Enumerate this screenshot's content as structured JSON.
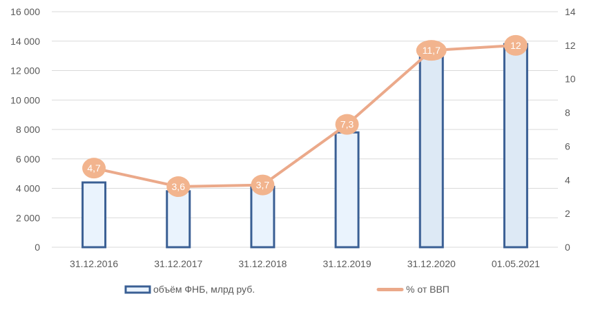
{
  "chart_data": {
    "type": "bar",
    "categories": [
      "31.12.2016",
      "31.12.2017",
      "31.12.2018",
      "31.12.2019",
      "31.12.2020",
      "01.05.2021"
    ],
    "series": [
      {
        "name": "объём ФНБ, млрд руб.",
        "type": "bar",
        "axis": "left",
        "values": [
          4400,
          3800,
          4100,
          7800,
          13200,
          13800
        ]
      },
      {
        "name": "% от ВВП",
        "type": "line",
        "axis": "right",
        "values": [
          4.7,
          3.6,
          3.7,
          7.3,
          11.7,
          12
        ],
        "labels": [
          "4,7",
          "3,6",
          "3,7",
          "7,3",
          "11,7",
          "12"
        ]
      }
    ],
    "y_left": {
      "min": 0,
      "max": 16000,
      "ticks": [
        0,
        2000,
        4000,
        6000,
        8000,
        10000,
        12000,
        14000,
        16000
      ],
      "tick_labels": [
        "0",
        "2 000",
        "4 000",
        "6 000",
        "8 000",
        "10 000",
        "12 000",
        "14 000",
        "16 000"
      ]
    },
    "y_right": {
      "min": 0,
      "max": 14,
      "ticks": [
        0,
        2,
        4,
        6,
        8,
        10,
        12,
        14
      ],
      "tick_labels": [
        "0",
        "2",
        "4",
        "6",
        "8",
        "10",
        "12",
        "14"
      ]
    },
    "title": "",
    "xlabel": "",
    "ylabel": "",
    "grid": true,
    "legend_position": "bottom",
    "colors": {
      "bar_border": "#3a5f94",
      "bar_fill_light": "#eaf3fd",
      "bar_fill_dark": "#dde9f5",
      "line": "#eba98a",
      "marker": "#f2b48e",
      "label_text": "#ffffff",
      "grid": "#d9d9d9",
      "tick_text": "#595959"
    }
  }
}
